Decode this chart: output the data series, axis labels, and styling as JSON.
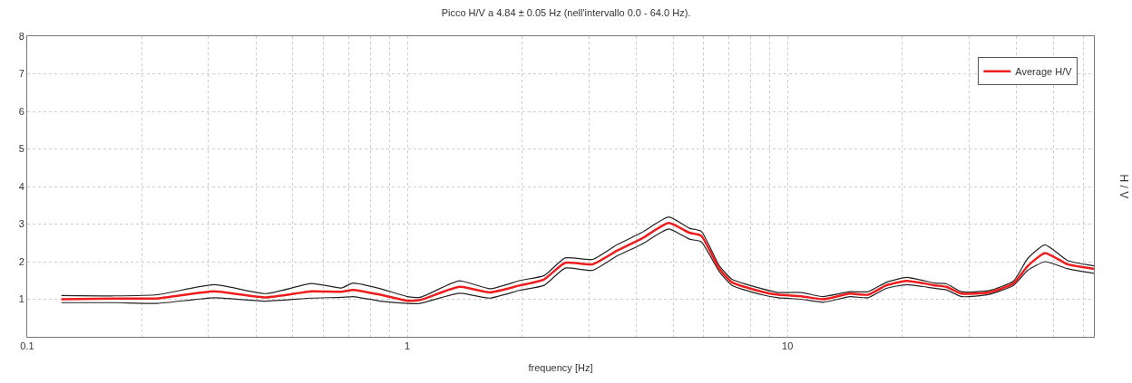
{
  "chart_data": {
    "type": "line",
    "title": "Picco H/V a 4.84 ± 0.05 Hz (nell'intervallo 0.0 - 64.0 Hz).",
    "xlabel": "frequency [Hz]",
    "ylabel": "H / V",
    "x": [
      0.123,
      0.17,
      0.22,
      0.31,
      0.425,
      0.56,
      0.67,
      0.72,
      0.85,
      1.0,
      1.08,
      1.37,
      1.65,
      1.98,
      2.29,
      2.6,
      3.07,
      3.56,
      4.13,
      4.87,
      5.52,
      5.93,
      6.62,
      7.15,
      8.57,
      9.46,
      10.9,
      12.4,
      14.6,
      16.3,
      18.2,
      20.6,
      24.4,
      26.2,
      28.7,
      33.9,
      39.3,
      42.9,
      47.6,
      54.6,
      64
    ],
    "series": [
      {
        "color": "#222222",
        "values": [
          1.1,
          1.09,
          1.12,
          1.39,
          1.15,
          1.42,
          1.3,
          1.43,
          1.28,
          1.07,
          1.05,
          1.49,
          1.28,
          1.5,
          1.63,
          2.1,
          2.06,
          2.45,
          2.77,
          3.19,
          2.89,
          2.81,
          1.89,
          1.53,
          1.28,
          1.18,
          1.18,
          1.07,
          1.2,
          1.2,
          1.45,
          1.58,
          1.43,
          1.41,
          1.2,
          1.23,
          1.48,
          2.09,
          2.45,
          2.03,
          1.89
        ]
      },
      {
        "color": "#222222",
        "values": [
          0.91,
          0.91,
          0.89,
          1.04,
          0.95,
          1.03,
          1.05,
          1.07,
          0.95,
          0.89,
          0.89,
          1.16,
          1.03,
          1.24,
          1.37,
          1.83,
          1.77,
          2.15,
          2.46,
          2.87,
          2.6,
          2.53,
          1.73,
          1.37,
          1.12,
          1.04,
          1.0,
          0.92,
          1.07,
          1.04,
          1.29,
          1.39,
          1.29,
          1.25,
          1.07,
          1.13,
          1.37,
          1.77,
          2.0,
          1.81,
          1.69
        ]
      },
      {
        "name": "Average H/V",
        "color": "#ee1c1c",
        "values": [
          1.0,
          1.02,
          1.02,
          1.21,
          1.05,
          1.21,
          1.2,
          1.25,
          1.12,
          0.96,
          0.98,
          1.33,
          1.18,
          1.37,
          1.53,
          1.97,
          1.93,
          2.29,
          2.61,
          3.03,
          2.77,
          2.69,
          1.81,
          1.45,
          1.2,
          1.12,
          1.08,
          1.0,
          1.15,
          1.12,
          1.37,
          1.49,
          1.37,
          1.33,
          1.15,
          1.18,
          1.42,
          1.89,
          2.23,
          1.93,
          1.81
        ]
      }
    ],
    "log": "x",
    "xlim": [
      0.1,
      64
    ],
    "xticks": [
      0.1,
      {
        "value": 0.2,
        "label": null
      },
      {
        "value": 0.3,
        "label": null
      },
      {
        "value": 0.4,
        "label": null
      },
      {
        "value": 0.5,
        "label": null
      },
      {
        "value": 0.6,
        "label": null
      },
      {
        "value": 0.7,
        "label": null
      },
      {
        "value": 0.8,
        "label": null
      },
      {
        "value": 0.9,
        "label": null
      },
      1,
      {
        "value": 2,
        "label": null
      },
      {
        "value": 3,
        "label": null
      },
      {
        "value": 4,
        "label": null
      },
      {
        "value": 5,
        "label": null
      },
      {
        "value": 6,
        "label": null
      },
      {
        "value": 7,
        "label": null
      },
      {
        "value": 8,
        "label": null
      },
      {
        "value": 9,
        "label": null
      },
      10,
      {
        "value": 20,
        "label": null
      },
      {
        "value": 30,
        "label": null
      },
      {
        "value": 40,
        "label": null
      },
      {
        "value": 50,
        "label": null
      },
      {
        "value": 60,
        "label": null
      }
    ],
    "ylim": [
      0,
      8
    ],
    "yticks": [
      1,
      2,
      3,
      4,
      5,
      6,
      7,
      8
    ],
    "grid": true,
    "legend": "top right",
    "line_style": "solid",
    "marker": "none"
  }
}
